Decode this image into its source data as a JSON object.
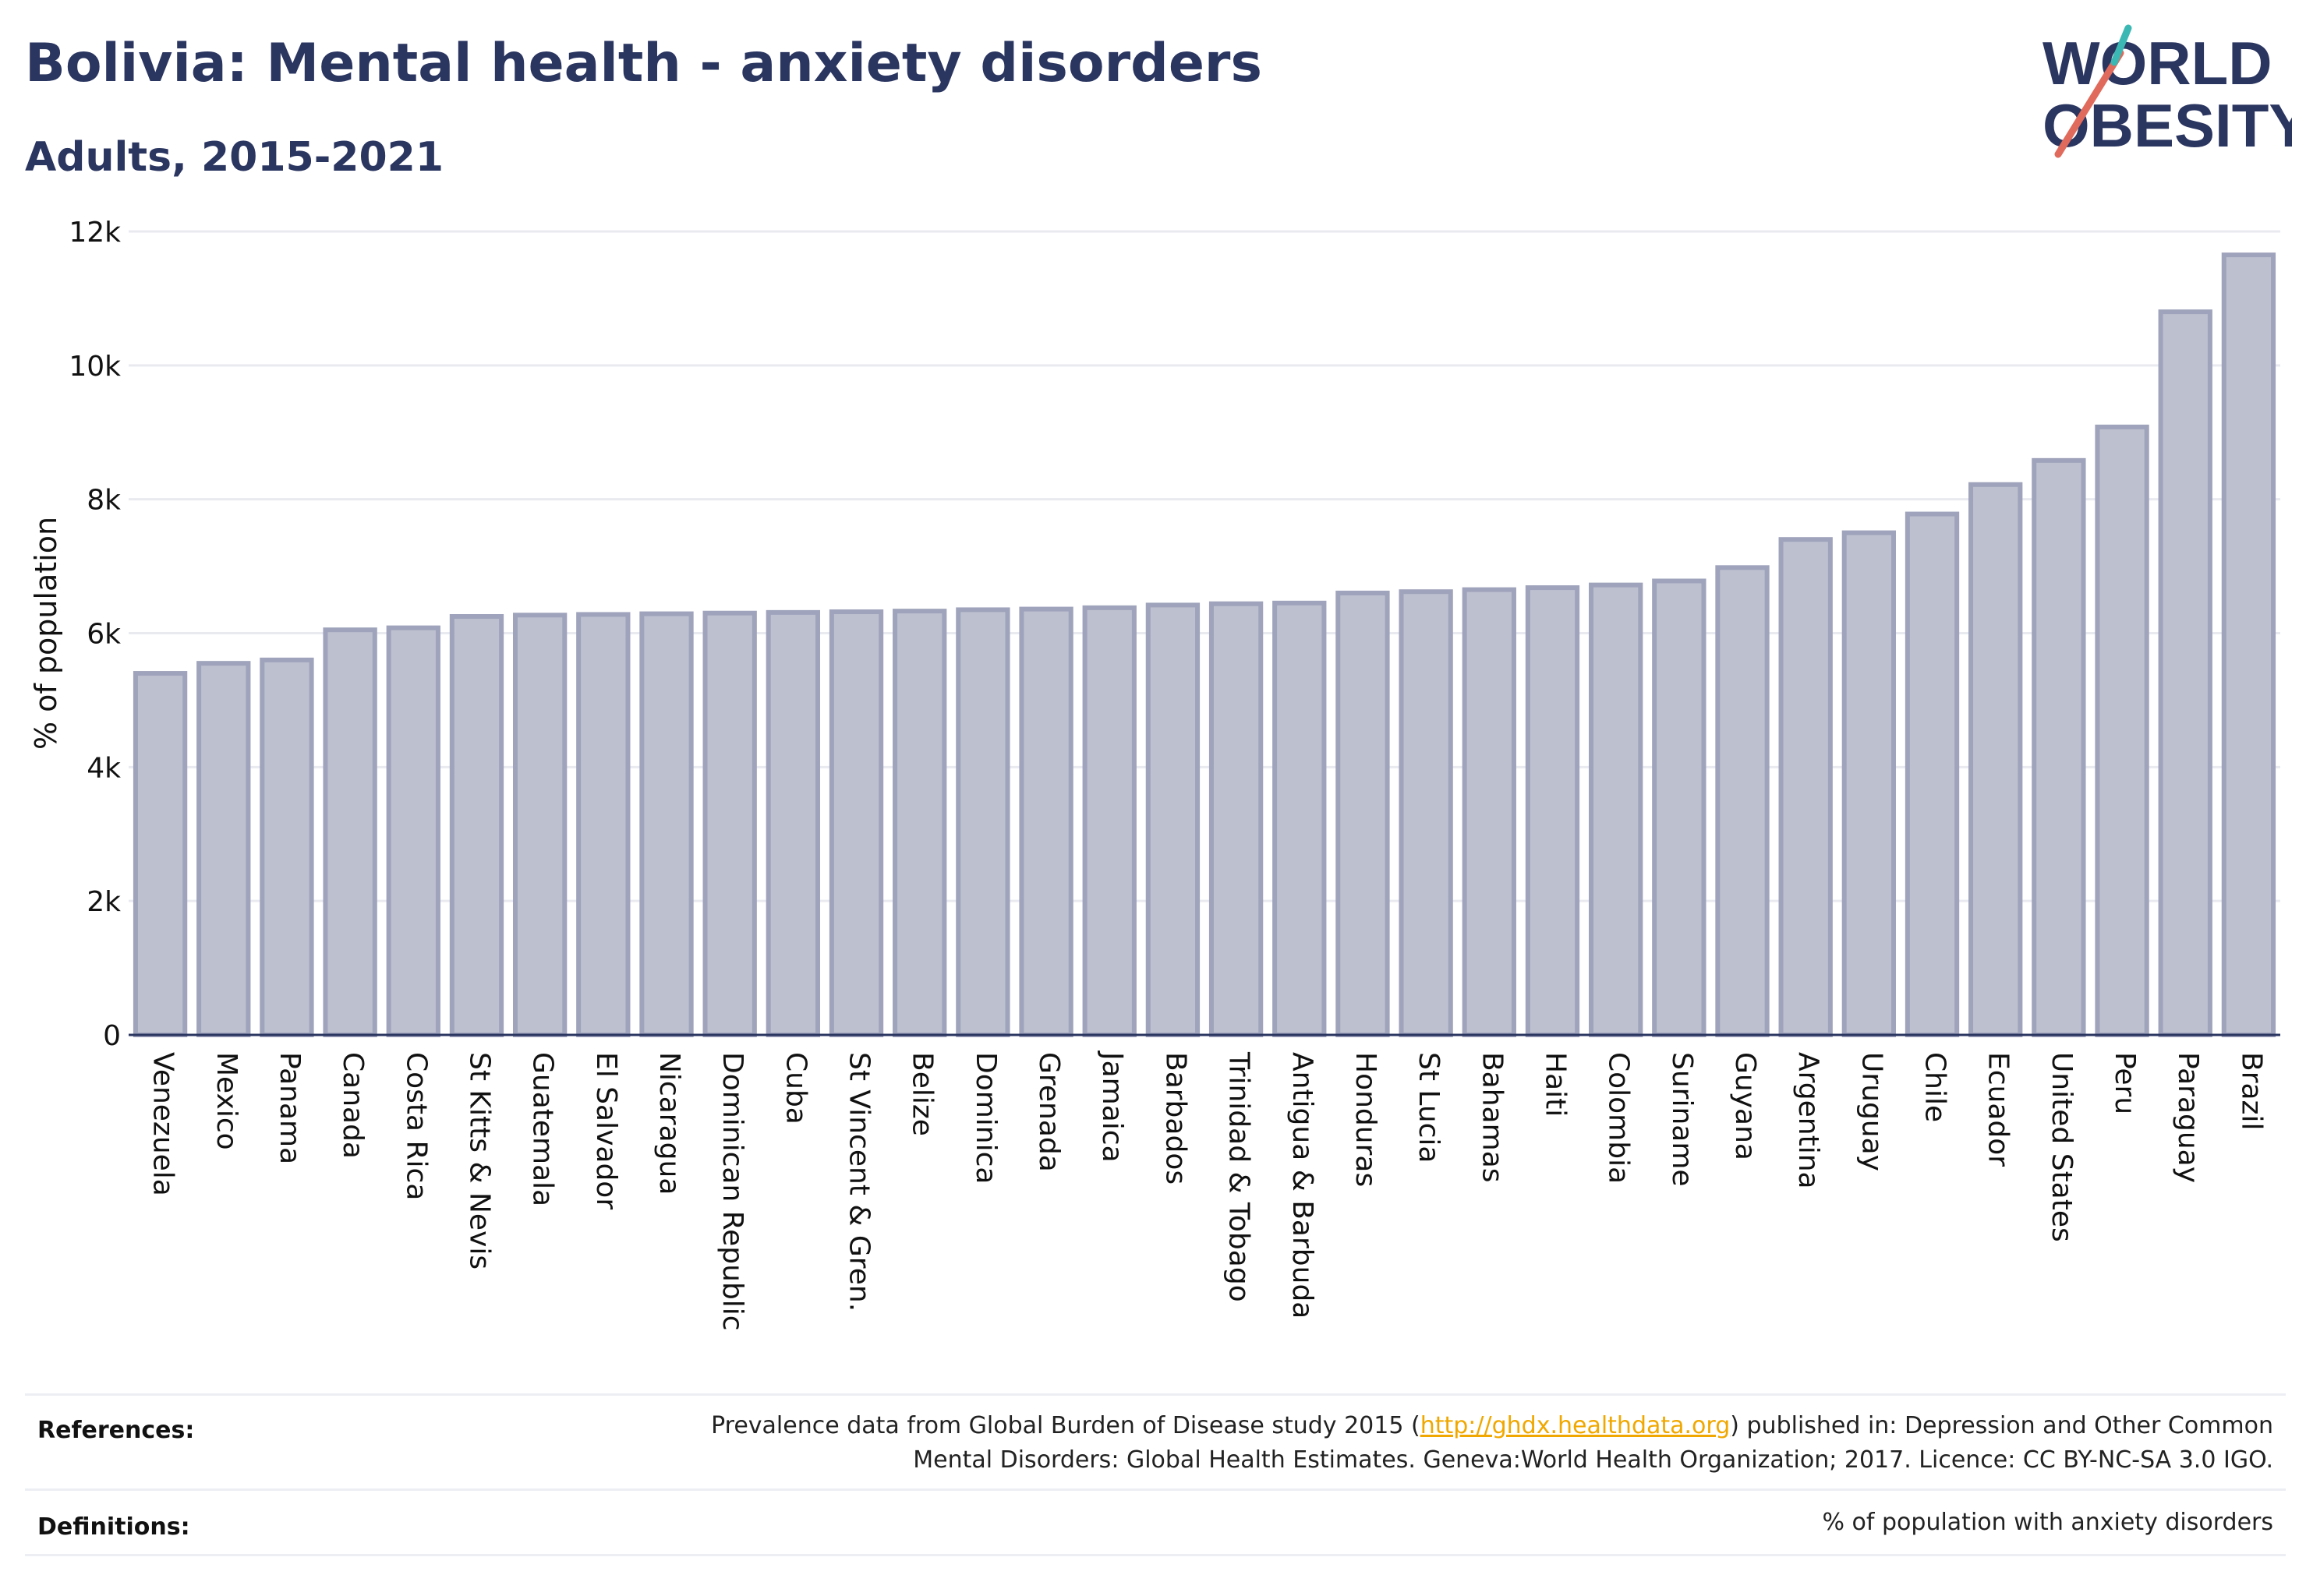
{
  "header": {
    "title": "Bolivia: Mental health - anxiety disorders",
    "subtitle": "Adults, 2015-2021"
  },
  "logo": {
    "line1": "WORLD",
    "line2": "OBESITY",
    "slash_colors": [
      "#e06a5b",
      "#3bb8b3"
    ]
  },
  "colors": {
    "bar_fill": "#bdc0cf",
    "bar_stroke": "#9fa3bb",
    "grid": "#e9eaf0",
    "axis": "#2a3560",
    "title": "#2a3560",
    "link": "#f0a800"
  },
  "chart_data": {
    "type": "bar",
    "ylabel": "% of population",
    "ylim": [
      0,
      12000
    ],
    "yticks": [
      0,
      2000,
      4000,
      6000,
      8000,
      10000,
      12000
    ],
    "ytick_labels": [
      "0",
      "2k",
      "4k",
      "6k",
      "8k",
      "10k",
      "12k"
    ],
    "grid": true,
    "categories": [
      "Venezuela",
      "Mexico",
      "Panama",
      "Canada",
      "Costa Rica",
      "St Kitts & Nevis",
      "Guatemala",
      "El Salvador",
      "Nicaragua",
      "Dominican Republic",
      "Cuba",
      "St Vincent & Gren.",
      "Belize",
      "Dominica",
      "Grenada",
      "Jamaica",
      "Barbados",
      "Trinidad & Tobago",
      "Antigua & Barbuda",
      "Honduras",
      "St Lucia",
      "Bahamas",
      "Haiti",
      "Colombia",
      "Suriname",
      "Guyana",
      "Argentina",
      "Uruguay",
      "Chile",
      "Ecuador",
      "United States",
      "Peru",
      "Paraguay",
      "Brazil"
    ],
    "values": [
      5400,
      5550,
      5600,
      6050,
      6080,
      6250,
      6270,
      6280,
      6290,
      6300,
      6310,
      6320,
      6330,
      6350,
      6360,
      6380,
      6420,
      6440,
      6450,
      6600,
      6620,
      6650,
      6680,
      6720,
      6780,
      6980,
      7400,
      7500,
      7780,
      8220,
      8580,
      9080,
      10800,
      11650
    ]
  },
  "footer": {
    "references_label": "References:",
    "references_text_before": "Prevalence data from Global Burden of Disease study 2015 (",
    "references_link": "http://ghdx.healthdata.org",
    "references_text_after": ") published in: Depression and Other Common",
    "references_line2": "Mental Disorders: Global Health Estimates. Geneva:World Health Organization; 2017. Licence: CC BY-NC-SA 3.0 IGO.",
    "definitions_label": "Definitions:",
    "definitions_text": "% of population with anxiety disorders"
  }
}
